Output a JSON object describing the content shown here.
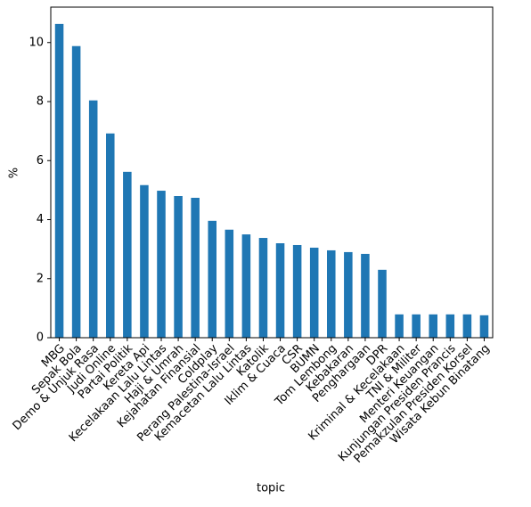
{
  "chart_data": {
    "type": "bar",
    "x_label": "topic",
    "y_label": "%",
    "categories": [
      "MBG",
      "Sepak Bola",
      "Demo & Unjuk Rasa",
      "Judi Online",
      "Partai Politik",
      "Kereta Api",
      "Kecelakaan Lalu Lintas",
      "Haji & Umrah",
      "Kejahatan Finansial",
      "Coldplay",
      "Perang Palestina-Israel",
      "Kemacetan Lalu Lintas",
      "Katolik",
      "Iklim & Cuaca",
      "CSR",
      "BUMN",
      "Tom Lembong",
      "Kebakaran",
      "Penghargaan",
      "DPR",
      "Kriminal & Kecelakaan",
      "TNI & Militer",
      "Menteri Keuangan",
      "Kunjungan Presiden Prancis",
      "Pemakzulan Presiden Korsel",
      "Wisata Kebun Binatang"
    ],
    "values": [
      10.63,
      9.88,
      8.04,
      6.92,
      5.62,
      5.17,
      4.98,
      4.8,
      4.74,
      3.96,
      3.66,
      3.5,
      3.38,
      3.2,
      3.14,
      3.05,
      2.96,
      2.9,
      2.84,
      2.3,
      0.79,
      0.79,
      0.79,
      0.79,
      0.79,
      0.76
    ],
    "color": "#1f77b4",
    "ylim": [
      0,
      11.2
    ],
    "yticks": [
      0,
      2,
      4,
      6,
      8,
      10
    ],
    "grid": false
  }
}
